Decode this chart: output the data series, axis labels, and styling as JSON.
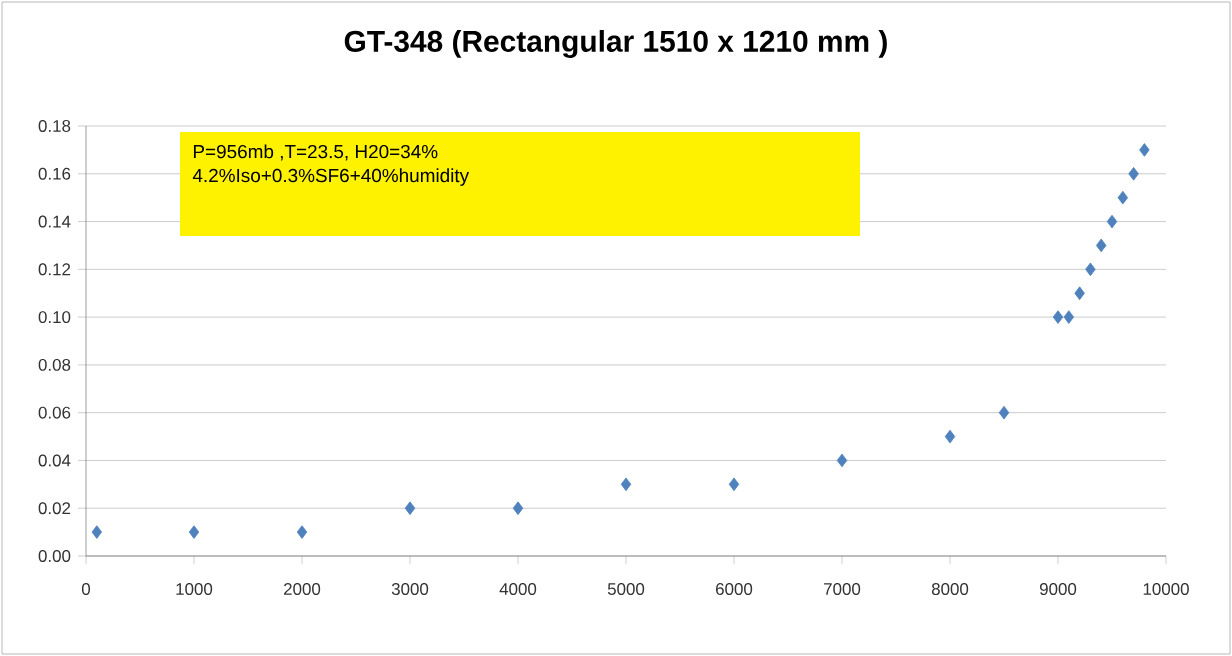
{
  "chart_data": {
    "type": "scatter",
    "title": "GT-348 (Rectangular 1510 x 1210 mm )",
    "annotations": [
      "P=956mb ,T=23.5, H20=34%",
      "4.2%Iso+0.3%SF6+40%humidity"
    ],
    "x": [
      100,
      1000,
      2000,
      3000,
      4000,
      5000,
      6000,
      7000,
      8000,
      8500,
      9000,
      9100,
      9200,
      9300,
      9400,
      9500,
      9600,
      9700,
      9800
    ],
    "values": [
      0.01,
      0.01,
      0.01,
      0.02,
      0.02,
      0.03,
      0.03,
      0.04,
      0.05,
      0.06,
      0.1,
      0.1,
      0.11,
      0.12,
      0.13,
      0.14,
      0.15,
      0.16,
      0.17
    ],
    "color": "#4f81bd",
    "marker": "diamond",
    "grid": "y",
    "xlim": [
      0,
      10000
    ],
    "xticks": [
      0,
      1000,
      2000,
      3000,
      4000,
      5000,
      6000,
      7000,
      8000,
      9000,
      10000
    ],
    "ylim": [
      0,
      0.18
    ],
    "yticks": [
      {
        "value": 0,
        "label": "0.00"
      },
      {
        "value": 0.02,
        "label": "0.02"
      },
      {
        "value": 0.04,
        "label": "0.04"
      },
      {
        "value": 0.06,
        "label": "0.06"
      },
      {
        "value": 0.08,
        "label": "0.08"
      },
      {
        "value": 0.1,
        "label": "0.10"
      },
      {
        "value": 0.12,
        "label": "0.12"
      },
      {
        "value": 0.14,
        "label": "0.14"
      },
      {
        "value": 0.16,
        "label": "0.16"
      },
      {
        "value": 0.18,
        "label": "0.18"
      }
    ]
  }
}
